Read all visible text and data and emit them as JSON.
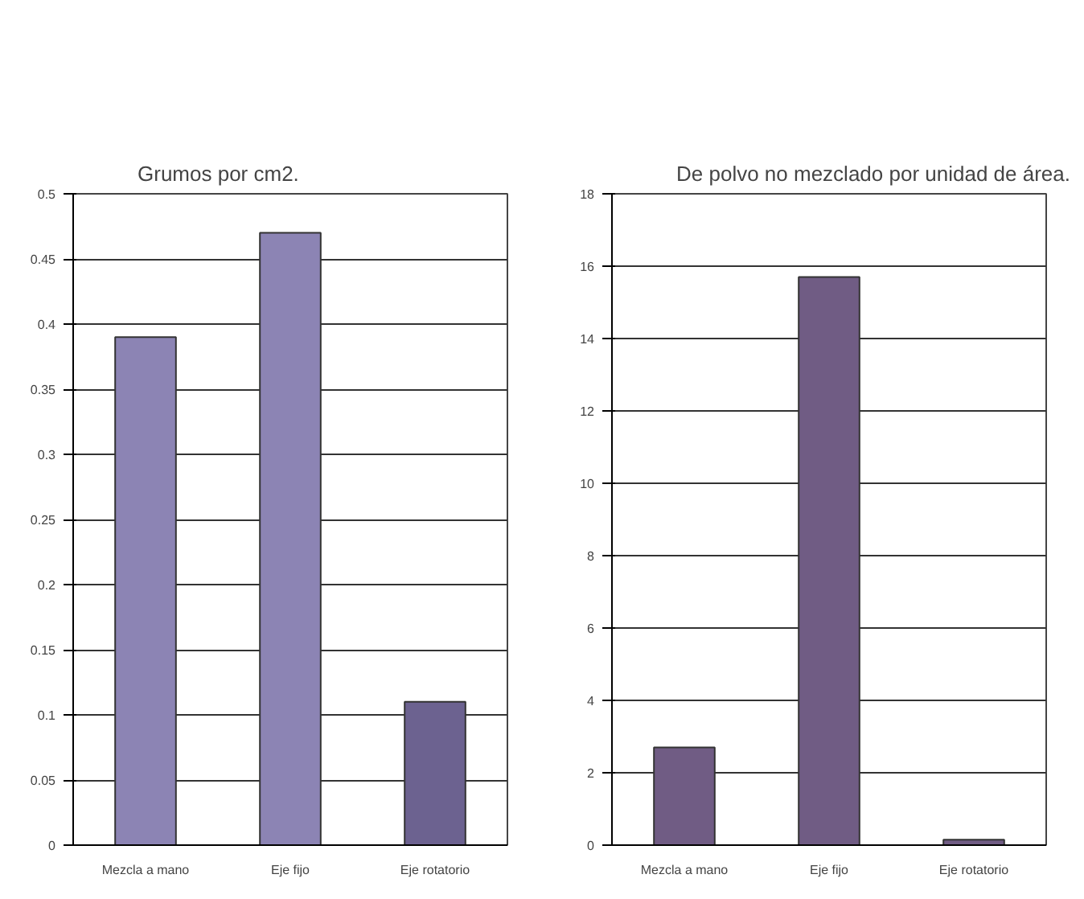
{
  "chart_data": [
    {
      "type": "bar",
      "title": "Grumos por cm2.",
      "categories": [
        "Mezcla a mano",
        "Eje fijo",
        "Eje rotatorio"
      ],
      "values": [
        0.39,
        0.47,
        0.11
      ],
      "colors": [
        "#8c84b4",
        "#8c84b4",
        "#6c6290"
      ],
      "ylim": [
        0,
        0.5
      ],
      "yticks": [
        0,
        0.05,
        0.1,
        0.15,
        0.2,
        0.25,
        0.3,
        0.35,
        0.4,
        0.45,
        0.5
      ],
      "grid": "y"
    },
    {
      "type": "bar",
      "title": "De polvo no mezclado por unidad de área.",
      "categories": [
        "Mezcla a mano",
        "Eje fijo",
        "Eje rotatorio"
      ],
      "values": [
        2.7,
        15.7,
        0.15
      ],
      "colors": [
        "#705c84",
        "#705c84",
        "#705c84"
      ],
      "ylim": [
        0,
        18
      ],
      "yticks": [
        0,
        2,
        4,
        6,
        8,
        10,
        12,
        14,
        16,
        18
      ],
      "grid": "y"
    }
  ]
}
